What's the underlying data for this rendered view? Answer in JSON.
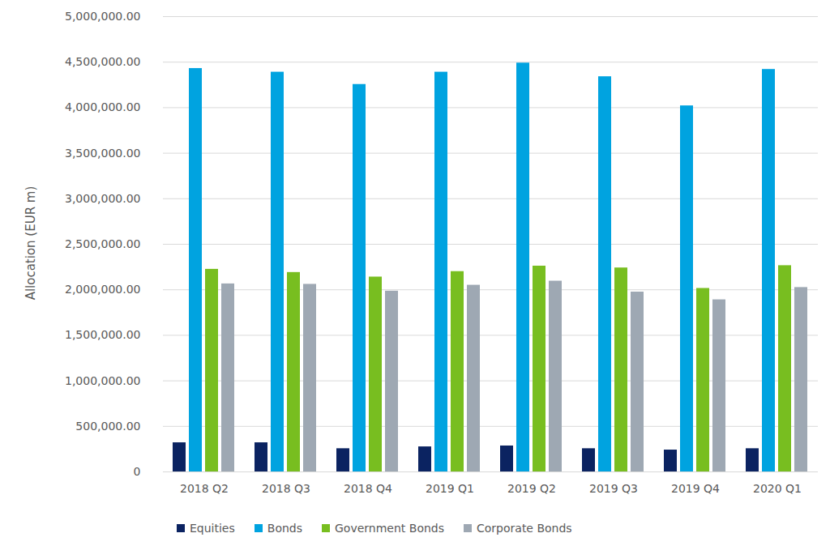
{
  "chart_data": {
    "type": "bar",
    "ylabel": "Allocation (EUR m)",
    "categories": [
      "2018 Q2",
      "2018 Q3",
      "2018 Q4",
      "2019 Q1",
      "2019 Q2",
      "2019 Q3",
      "2019 Q4",
      "2020 Q1"
    ],
    "series": [
      {
        "name": "Equities",
        "color": "#0b2361",
        "values": [
          320000,
          320000,
          255000,
          275000,
          285000,
          255000,
          240000,
          255000
        ]
      },
      {
        "name": "Bonds",
        "color": "#00a3e0",
        "values": [
          4430000,
          4390000,
          4255000,
          4390000,
          4490000,
          4340000,
          4020000,
          4420000
        ]
      },
      {
        "name": "Government Bonds",
        "color": "#78be20",
        "values": [
          2225000,
          2190000,
          2140000,
          2200000,
          2260000,
          2240000,
          2015000,
          2265000
        ]
      },
      {
        "name": "Corporate Bonds",
        "color": "#9ea8b3",
        "values": [
          2065000,
          2060000,
          1985000,
          2050000,
          2095000,
          1975000,
          1890000,
          2025000
        ]
      }
    ],
    "ylim": [
      0,
      5000000
    ],
    "yticks": [
      0,
      {
        "value": 500000,
        "label": "500,000.00"
      },
      {
        "value": 1000000,
        "label": "1,000,000.00"
      },
      {
        "value": 1500000,
        "label": "1,500,000.00"
      },
      {
        "value": 2000000,
        "label": "2,000,000.00"
      },
      {
        "value": 2500000,
        "label": "2,500,000.00"
      },
      {
        "value": 3000000,
        "label": "3,000,000.00"
      },
      {
        "value": 3500000,
        "label": "3,500,000.00"
      },
      {
        "value": 4000000,
        "label": "4,000,000.00"
      },
      {
        "value": 4500000,
        "label": "4,500,000.00"
      },
      {
        "value": 5000000,
        "label": "5,000,000.00"
      }
    ],
    "grid": true,
    "legend": "bottom"
  }
}
